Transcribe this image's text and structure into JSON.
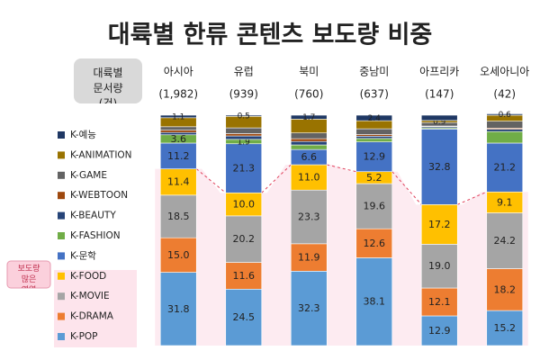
{
  "chart_data": {
    "type": "stacked_bar",
    "title": "대륙별 한류 콘텐츠 보도량 비중",
    "header_label": "대륙별 문서량(건)",
    "categories": [
      "아시아",
      "유럽",
      "북미",
      "중남미",
      "아프리카",
      "오세아니아"
    ],
    "category_counts": [
      "(1,982)",
      "(939)",
      "(760)",
      "(637)",
      "(147)",
      "(42)"
    ],
    "ylim": [
      0,
      100
    ],
    "annotation": "보도량 많은 영역",
    "series": [
      {
        "name": "K-POP",
        "color": "#5b9bd5",
        "values": [
          31.8,
          24.5,
          32.3,
          38.1,
          12.9,
          15.2
        ],
        "value_labels": [
          "31.8",
          "24.5",
          "32.3",
          "38.1",
          "12.9",
          "15.2"
        ]
      },
      {
        "name": "K-DRAMA",
        "color": "#ed7d31",
        "values": [
          15,
          11.6,
          11.9,
          12.6,
          12.1,
          18.2
        ],
        "value_labels": [
          "15.0",
          "11.6",
          "11.9",
          "12.6",
          "12.1",
          "18.2"
        ]
      },
      {
        "name": "K-MOVIE",
        "color": "#a5a5a5",
        "values": [
          18.5,
          20.2,
          23.3,
          19.6,
          19,
          24.2
        ],
        "value_labels": [
          "18.5",
          "20.2",
          "23.3",
          "19.6",
          "19.0",
          "24.2"
        ]
      },
      {
        "name": "K-FOOD",
        "color": "#ffc000",
        "values": [
          11.4,
          10,
          11,
          5.2,
          17.2,
          9.1
        ],
        "value_labels": [
          "11.4",
          "10.0",
          "11.0",
          "5.2",
          "17.2",
          "9.1"
        ]
      },
      {
        "name": "K-문학",
        "color": "#4472c4",
        "values": [
          11.2,
          21.3,
          6.6,
          12.9,
          32.8,
          21.2
        ],
        "value_labels": [
          "11.2",
          "21.3",
          "6.6",
          "12.9",
          "32.8",
          "21.2"
        ]
      },
      {
        "name": "K-FASHION",
        "color": "#70ad47",
        "values": [
          3.6,
          1.9,
          2,
          1.5,
          0.5,
          5
        ],
        "value_labels": [
          "3.6",
          "1.9",
          null,
          null,
          null,
          null
        ]
      },
      {
        "name": "K-BEAUTY",
        "color": "#264478",
        "values": [
          1,
          1.5,
          1.5,
          1,
          0.5,
          1
        ],
        "value_labels": [
          null,
          null,
          null,
          null,
          null,
          null
        ]
      },
      {
        "name": "K-WEBTOON",
        "color": "#9e480e",
        "values": [
          1,
          1,
          1.2,
          0.7,
          0.3,
          0.5
        ],
        "value_labels": [
          null,
          null,
          null,
          null,
          null,
          null
        ]
      },
      {
        "name": "K-GAME",
        "color": "#636363",
        "values": [
          1.5,
          2.5,
          2.5,
          2.5,
          1.5,
          3
        ],
        "value_labels": [
          null,
          null,
          null,
          null,
          null,
          null
        ]
      },
      {
        "name": "K-ANIMATION",
        "color": "#997300",
        "values": [
          3.9,
          5,
          6,
          3.5,
          0.9,
          2.6
        ],
        "value_labels": [
          null,
          null,
          null,
          null,
          "0.9",
          null
        ]
      },
      {
        "name": "K-예능",
        "color": "#1f3864",
        "values": [
          1.1,
          0.5,
          1.7,
          2.4,
          2.3,
          0.6
        ],
        "value_labels": [
          "1.1",
          "0.5",
          "1.7",
          "2.4",
          null,
          "0.6"
        ]
      }
    ]
  }
}
